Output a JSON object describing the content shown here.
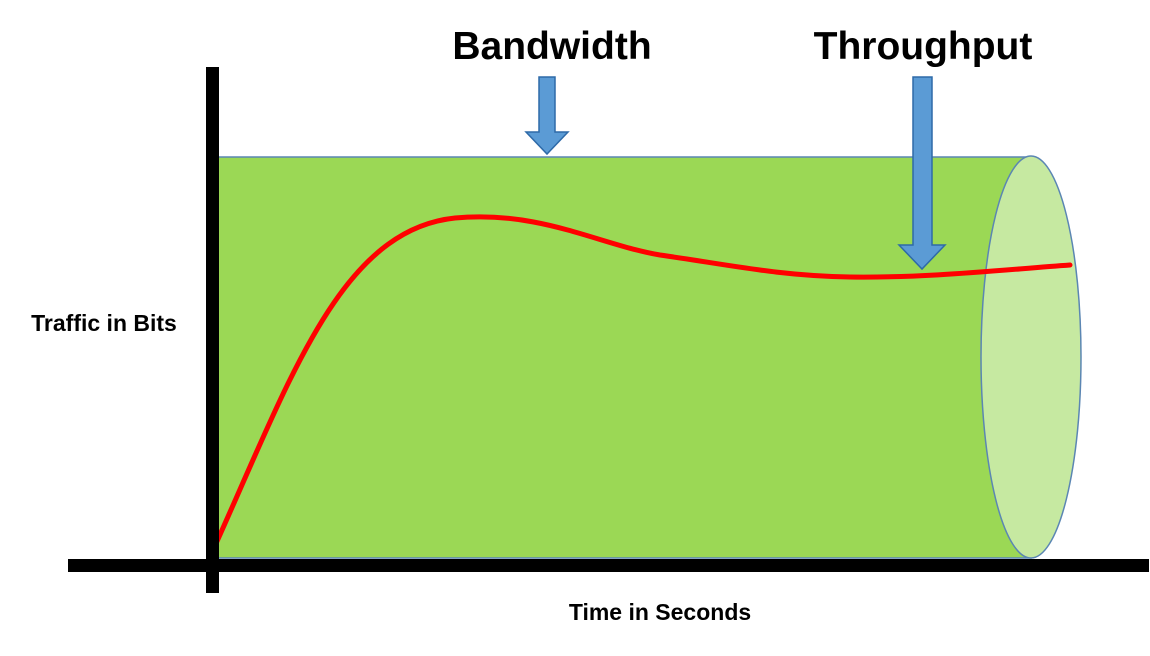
{
  "labels": {
    "bandwidth": "Bandwidth",
    "throughput": "Throughput",
    "y_axis": "Traffic in Bits",
    "x_axis": "Time in Seconds"
  },
  "colors": {
    "pipe_body": "#9bd855",
    "pipe_end": "#c6e9a1",
    "pipe_outline": "#5b86b3",
    "throughput_curve": "#ff0000",
    "arrow_fill": "#5b9bd5",
    "arrow_outline": "#2e6aa8",
    "axis": "#000000"
  }
}
